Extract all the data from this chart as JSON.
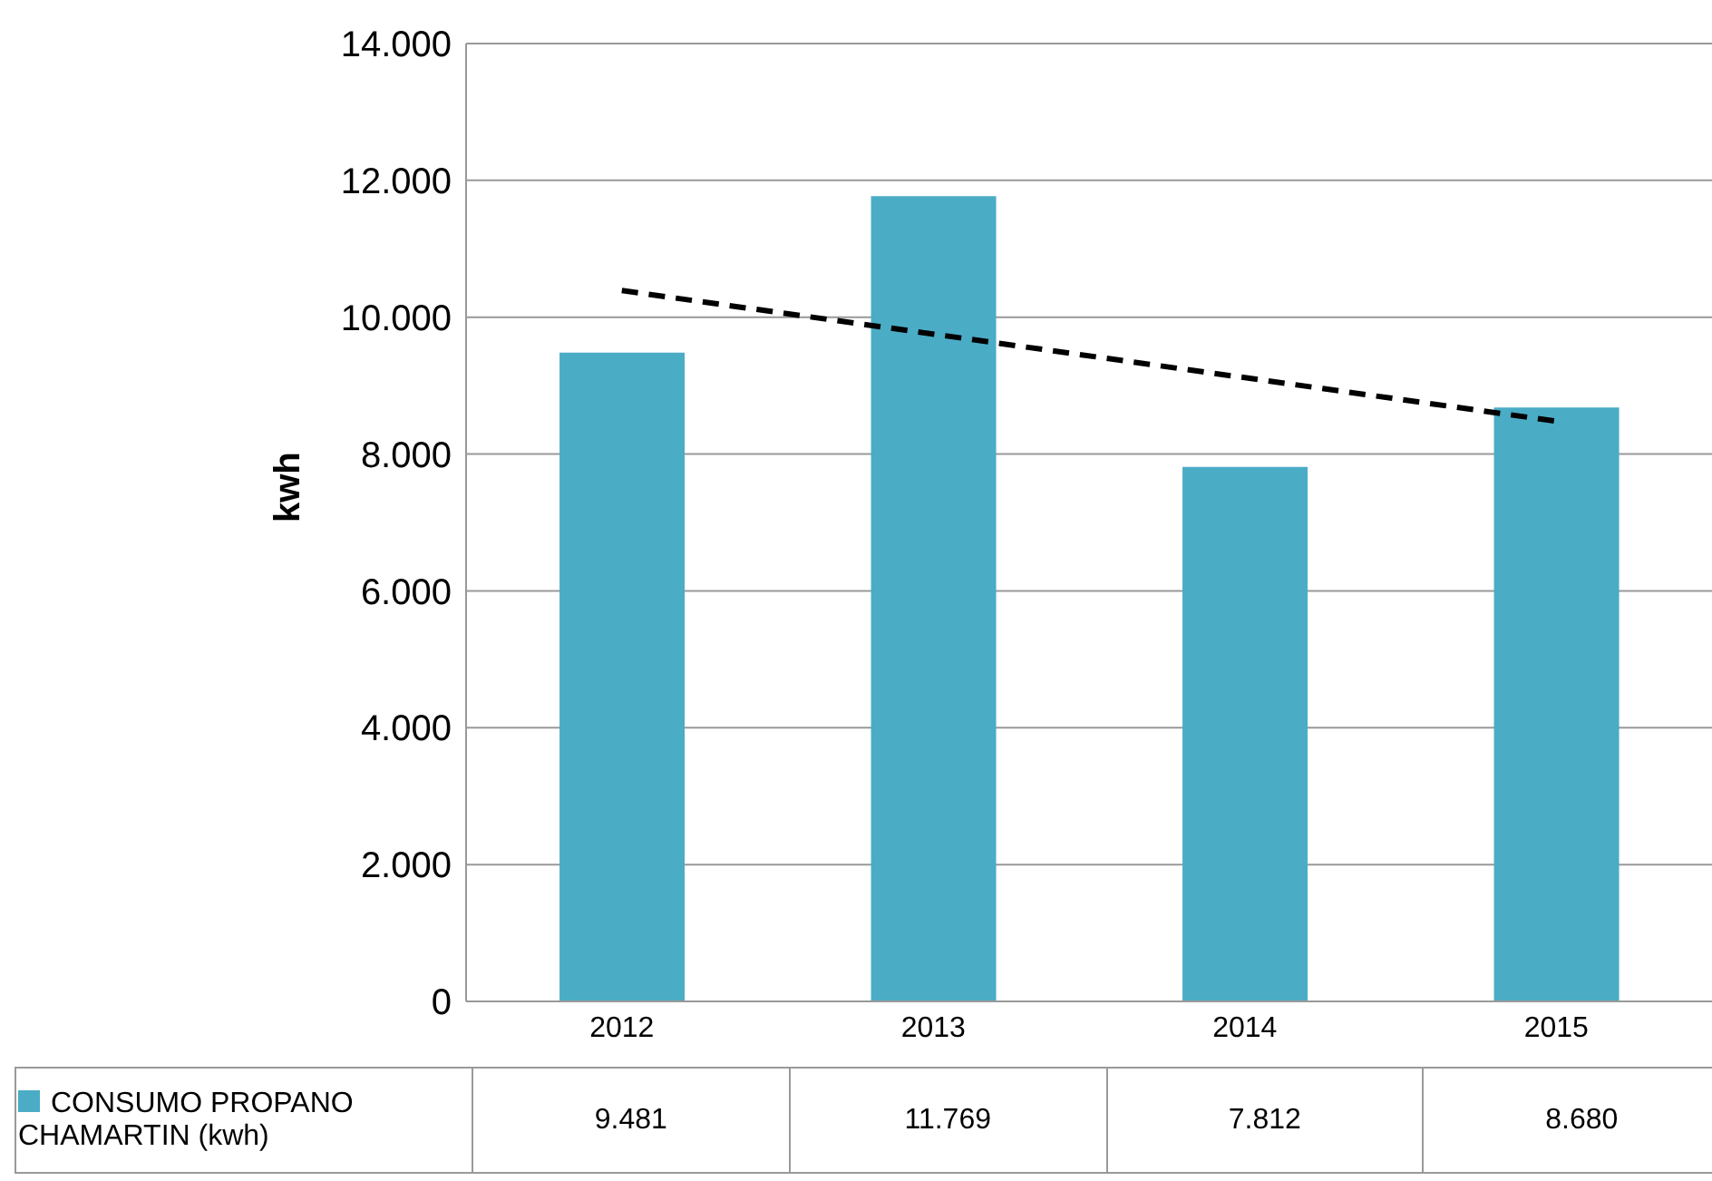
{
  "chart_data": {
    "type": "bar",
    "ylabel": "kwh",
    "categories": [
      "2012",
      "2013",
      "2014",
      "2015"
    ],
    "series": [
      {
        "name": "CONSUMO PROPANO CHAMARTIN (kwh)",
        "color": "#4bacc6",
        "values": [
          9481,
          11769,
          7812,
          8680
        ],
        "value_labels": [
          "9.481",
          "11.769",
          "7.812",
          "8.680"
        ]
      },
      {
        "type": "line",
        "color": "#000000",
        "values": [
          10390,
          null,
          null,
          8480
        ],
        "line_style": "dashed",
        "marker": "none"
      }
    ],
    "ylim": [
      0,
      14000
    ],
    "yticks": [
      {
        "value": 0,
        "label": "0"
      },
      {
        "value": 2000,
        "label": "2.000"
      },
      {
        "value": 4000,
        "label": "4.000"
      },
      {
        "value": 6000,
        "label": "6.000"
      },
      {
        "value": 8000,
        "label": "8.000"
      },
      {
        "value": 10000,
        "label": "10.000"
      },
      {
        "value": 12000,
        "label": "12.000"
      },
      {
        "value": 14000,
        "label": "14.000"
      }
    ],
    "grid": "y",
    "legend": "bottom"
  }
}
